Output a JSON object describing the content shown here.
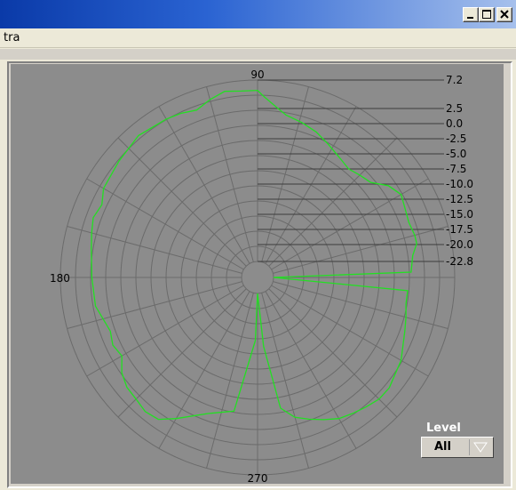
{
  "window": {
    "minimize_icon": "minimize-icon",
    "maximize_icon": "maximize-icon",
    "close_icon": "close-icon"
  },
  "menu": {
    "items": [
      {
        "label": "tra"
      }
    ]
  },
  "chart_data": {
    "type": "polar",
    "angle_labels": [
      "90",
      "180",
      "270"
    ],
    "radial_ticks": [
      "7.2",
      "2.5",
      "0.0",
      "-2.5",
      "-5.0",
      "-7.5",
      "-10.0",
      "-12.5",
      "-15.0",
      "-17.5",
      "-20.0",
      "-22.8"
    ],
    "radial_tick_values": [
      7.2,
      2.5,
      0.0,
      -2.5,
      -5.0,
      -7.5,
      -10.0,
      -12.5,
      -15.0,
      -17.5,
      -20.0,
      -22.8
    ],
    "rlim": [
      -22.8,
      7.2
    ],
    "angle_step_deg": 15,
    "grid": true,
    "background_color": "#8c8c8c",
    "grid_color": "#6b6b6b",
    "series": [
      {
        "color": "#22e022",
        "points": [
          [
            0,
            -22.8
          ],
          [
            2,
            0.0
          ],
          [
            8,
            0.5
          ],
          [
            12,
            1.5
          ],
          [
            15,
            1.5
          ],
          [
            20,
            1.2
          ],
          [
            25,
            1.5
          ],
          [
            30,
            2.0
          ],
          [
            35,
            1.0
          ],
          [
            40,
            -1.0
          ],
          [
            45,
            -1.5
          ],
          [
            50,
            -2.0
          ],
          [
            55,
            -1.5
          ],
          [
            62,
            -0.5
          ],
          [
            68,
            0.5
          ],
          [
            74,
            1.2
          ],
          [
            80,
            1.8
          ],
          [
            84,
            3.0
          ],
          [
            88,
            4.5
          ],
          [
            90,
            5.5
          ],
          [
            95,
            5.5
          ],
          [
            100,
            5.8
          ],
          [
            105,
            5.0
          ],
          [
            110,
            4.0
          ],
          [
            115,
            4.5
          ],
          [
            120,
            4.8
          ],
          [
            130,
            5.2
          ],
          [
            140,
            4.5
          ],
          [
            150,
            4.0
          ],
          [
            155,
            3.0
          ],
          [
            160,
            3.5
          ],
          [
            165,
            3.0
          ],
          [
            170,
            2.5
          ],
          [
            180,
            2.0
          ],
          [
            190,
            1.8
          ],
          [
            200,
            0.5
          ],
          [
            205,
            1.0
          ],
          [
            210,
            0.5
          ],
          [
            215,
            2.0
          ],
          [
            220,
            2.8
          ],
          [
            225,
            3.0
          ],
          [
            230,
            3.5
          ],
          [
            235,
            3.2
          ],
          [
            240,
            1.5
          ],
          [
            250,
            -1.5
          ],
          [
            260,
            -3.0
          ],
          [
            268,
            -15.0
          ],
          [
            270,
            -22.8
          ],
          [
            275,
            -14.0
          ],
          [
            280,
            -3.5
          ],
          [
            285,
            -1.5
          ],
          [
            290,
            -0.5
          ],
          [
            295,
            0.5
          ],
          [
            300,
            1.5
          ],
          [
            305,
            2.0
          ],
          [
            310,
            2.5
          ],
          [
            315,
            3.0
          ],
          [
            320,
            3.0
          ],
          [
            330,
            2.0
          ],
          [
            340,
            0.5
          ],
          [
            345,
            0.0
          ],
          [
            350,
            -0.5
          ],
          [
            355,
            -0.5
          ],
          [
            360,
            -22.8
          ]
        ]
      }
    ]
  },
  "level": {
    "label": "Level",
    "value": "All"
  }
}
